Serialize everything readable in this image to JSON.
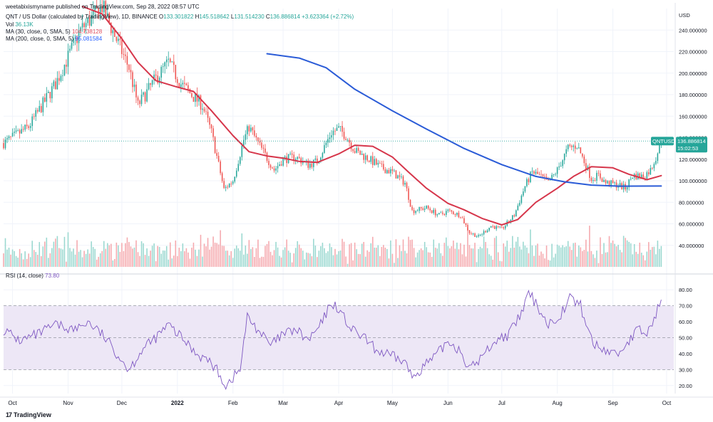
{
  "header": {
    "published_by": "weetabixismyname published on TradingView.com, Sep 28, 2022 08:57 UTC",
    "symbol_line": "QNT / US Dollar (calculated by TradingView), 1D, BINANCE",
    "ohlc": {
      "o_label": "O",
      "o": "133.301822",
      "h_label": "H",
      "h": "145.518642",
      "l_label": "L",
      "l": "131.514230",
      "c_label": "C",
      "c": "136.886814",
      "change": "+3.623364 (+2.72%)"
    },
    "vol_label": "Vol",
    "vol": "36.13K",
    "ma30_label": "MA (30, close, 0, SMA, 5)",
    "ma30": "104.738128",
    "ma200_label": "MA (200, close, 0, SMA, 5)",
    "ma200": "95.081584",
    "rsi_label": "RSI (14, close)",
    "rsi": "73.80"
  },
  "price_badge": {
    "symbol": "QNTUSD",
    "price": "136.886814",
    "countdown": "15:02:53"
  },
  "footer": {
    "logo_text": "TradingView",
    "logo_mark": "17"
  },
  "colors": {
    "up": "#26a69a",
    "down": "#ef5350",
    "up_vol": "#9ad8d0",
    "down_vol": "#f5a9ae",
    "ma30": "#d6364b",
    "ma200": "#2a5bd7",
    "rsi_line": "#7e57c2",
    "rsi_band": "#ede7f6"
  },
  "chart_data": [
    {
      "type": "candlestick",
      "title": "QNT / US Dollar, 1D, BINANCE",
      "ylabel": "USD",
      "ylim": [
        20,
        260
      ],
      "yticks": [
        40,
        60,
        80,
        100,
        120,
        140,
        160,
        180,
        200,
        220,
        240
      ],
      "ytick_labels": [
        "40.000000",
        "60.000000",
        "80.000000",
        "100.000000",
        "120.000000",
        "140.000000",
        "160.000000",
        "180.000000",
        "200.000000",
        "220.000000",
        "240.000000"
      ],
      "x_range": [
        "2021-09-26",
        "2022-10-05"
      ],
      "x_ticks": [
        {
          "date": "2021-10-01",
          "label": "Oct"
        },
        {
          "date": "2021-11-01",
          "label": "Nov"
        },
        {
          "date": "2021-12-01",
          "label": "Dec"
        },
        {
          "date": "2022-01-01",
          "label": "2022"
        },
        {
          "date": "2022-02-01",
          "label": "Feb"
        },
        {
          "date": "2022-03-01",
          "label": "Mar"
        },
        {
          "date": "2022-04-01",
          "label": "Apr"
        },
        {
          "date": "2022-05-01",
          "label": "May"
        },
        {
          "date": "2022-06-01",
          "label": "Jun"
        },
        {
          "date": "2022-07-01",
          "label": "Jul"
        },
        {
          "date": "2022-08-01",
          "label": "Aug"
        },
        {
          "date": "2022-09-01",
          "label": "Sep"
        },
        {
          "date": "2022-10-01",
          "label": "Oct"
        }
      ],
      "close_path": [
        [
          "2021-09-26",
          135
        ],
        [
          "2021-10-10",
          150
        ],
        [
          "2021-10-25",
          190
        ],
        [
          "2021-11-08",
          240
        ],
        [
          "2021-11-20",
          262
        ],
        [
          "2021-11-27",
          235
        ],
        [
          "2021-12-05",
          205
        ],
        [
          "2021-12-10",
          170
        ],
        [
          "2021-12-20",
          195
        ],
        [
          "2021-12-27",
          210
        ],
        [
          "2022-01-03",
          190
        ],
        [
          "2022-01-10",
          178
        ],
        [
          "2022-01-15",
          170
        ],
        [
          "2022-01-20",
          145
        ],
        [
          "2022-01-24",
          115
        ],
        [
          "2022-01-27",
          92
        ],
        [
          "2022-02-01",
          100
        ],
        [
          "2022-02-07",
          138
        ],
        [
          "2022-02-10",
          150
        ],
        [
          "2022-02-15",
          135
        ],
        [
          "2022-02-24",
          110
        ],
        [
          "2022-03-01",
          120
        ],
        [
          "2022-03-08",
          122
        ],
        [
          "2022-03-15",
          115
        ],
        [
          "2022-03-20",
          118
        ],
        [
          "2022-03-28",
          145
        ],
        [
          "2022-04-01",
          148
        ],
        [
          "2022-04-05",
          142
        ],
        [
          "2022-04-10",
          128
        ],
        [
          "2022-04-18",
          120
        ],
        [
          "2022-04-25",
          112
        ],
        [
          "2022-05-01",
          108
        ],
        [
          "2022-05-08",
          98
        ],
        [
          "2022-05-12",
          72
        ],
        [
          "2022-05-20",
          75
        ],
        [
          "2022-05-27",
          68
        ],
        [
          "2022-06-01",
          72
        ],
        [
          "2022-06-08",
          68
        ],
        [
          "2022-06-13",
          52
        ],
        [
          "2022-06-18",
          48
        ],
        [
          "2022-06-25",
          58
        ],
        [
          "2022-07-01",
          55
        ],
        [
          "2022-07-08",
          68
        ],
        [
          "2022-07-14",
          95
        ],
        [
          "2022-07-18",
          108
        ],
        [
          "2022-07-22",
          105
        ],
        [
          "2022-07-27",
          98
        ],
        [
          "2022-08-01",
          110
        ],
        [
          "2022-08-07",
          130
        ],
        [
          "2022-08-12",
          133
        ],
        [
          "2022-08-16",
          118
        ],
        [
          "2022-08-20",
          102
        ],
        [
          "2022-08-24",
          105
        ],
        [
          "2022-08-28",
          98
        ],
        [
          "2022-09-04",
          96
        ],
        [
          "2022-09-08",
          93
        ],
        [
          "2022-09-12",
          105
        ],
        [
          "2022-09-18",
          104
        ],
        [
          "2022-09-22",
          110
        ],
        [
          "2022-09-25",
          122
        ],
        [
          "2022-09-28",
          136.89
        ]
      ],
      "series": [
        {
          "name": "MA (30, close, 0, SMA, 5)",
          "points": [
            [
              "2021-11-09",
              262
            ],
            [
              "2021-11-20",
              255
            ],
            [
              "2021-12-01",
              232
            ],
            [
              "2021-12-10",
              210
            ],
            [
              "2021-12-20",
              193
            ],
            [
              "2022-01-01",
              187
            ],
            [
              "2022-01-10",
              183
            ],
            [
              "2022-01-20",
              165
            ],
            [
              "2022-02-01",
              142
            ],
            [
              "2022-02-10",
              127
            ],
            [
              "2022-02-20",
              123
            ],
            [
              "2022-03-01",
              121
            ],
            [
              "2022-03-10",
              118
            ],
            [
              "2022-03-20",
              117
            ],
            [
              "2022-04-01",
              125
            ],
            [
              "2022-04-10",
              133
            ],
            [
              "2022-04-20",
              132
            ],
            [
              "2022-05-01",
              122
            ],
            [
              "2022-05-10",
              108
            ],
            [
              "2022-05-20",
              93
            ],
            [
              "2022-06-01",
              79
            ],
            [
              "2022-06-10",
              73
            ],
            [
              "2022-06-20",
              65
            ],
            [
              "2022-07-01",
              59
            ],
            [
              "2022-07-10",
              64
            ],
            [
              "2022-07-20",
              80
            ],
            [
              "2022-08-01",
              93
            ],
            [
              "2022-08-10",
              104
            ],
            [
              "2022-08-20",
              113
            ],
            [
              "2022-09-01",
              112
            ],
            [
              "2022-09-10",
              106
            ],
            [
              "2022-09-20",
              101
            ],
            [
              "2022-09-28",
              104.74
            ]
          ]
        },
        {
          "name": "MA (200, close, 0, SMA, 5)",
          "points": [
            [
              "2022-02-20",
              218
            ],
            [
              "2022-03-10",
              214
            ],
            [
              "2022-03-25",
              205
            ],
            [
              "2022-04-10",
              185
            ],
            [
              "2022-05-01",
              165
            ],
            [
              "2022-05-20",
              148
            ],
            [
              "2022-06-10",
              130
            ],
            [
              "2022-07-01",
              115
            ],
            [
              "2022-07-20",
              104
            ],
            [
              "2022-08-05",
              99
            ],
            [
              "2022-08-20",
              96
            ],
            [
              "2022-09-05",
              95
            ],
            [
              "2022-09-28",
              95.08
            ]
          ]
        }
      ]
    },
    {
      "type": "line",
      "title": "RSI (14, close)",
      "ylim": [
        15,
        85
      ],
      "yticks": [
        20,
        30,
        40,
        50,
        60,
        70,
        80
      ],
      "ytick_labels": [
        "20.00",
        "30.00",
        "40.00",
        "50.00",
        "60.00",
        "70.00",
        "80.00"
      ],
      "band": [
        30,
        70
      ],
      "midline": 50,
      "series": [
        {
          "name": "RSI",
          "points": [
            [
              "2021-09-26",
              55
            ],
            [
              "2021-10-05",
              48
            ],
            [
              "2021-10-15",
              52
            ],
            [
              "2021-10-25",
              58
            ],
            [
              "2021-11-05",
              55
            ],
            [
              "2021-11-12",
              60
            ],
            [
              "2021-11-20",
              52
            ],
            [
              "2021-11-27",
              42
            ],
            [
              "2021-12-05",
              30
            ],
            [
              "2021-12-12",
              42
            ],
            [
              "2021-12-20",
              50
            ],
            [
              "2021-12-27",
              58
            ],
            [
              "2022-01-05",
              48
            ],
            [
              "2022-01-12",
              40
            ],
            [
              "2022-01-19",
              35
            ],
            [
              "2022-01-24",
              28
            ],
            [
              "2022-01-28",
              20
            ],
            [
              "2022-02-05",
              30
            ],
            [
              "2022-02-09",
              63
            ],
            [
              "2022-02-15",
              55
            ],
            [
              "2022-02-22",
              45
            ],
            [
              "2022-03-01",
              52
            ],
            [
              "2022-03-08",
              55
            ],
            [
              "2022-03-15",
              48
            ],
            [
              "2022-03-22",
              58
            ],
            [
              "2022-03-28",
              72
            ],
            [
              "2022-04-01",
              68
            ],
            [
              "2022-04-08",
              55
            ],
            [
              "2022-04-15",
              50
            ],
            [
              "2022-04-22",
              42
            ],
            [
              "2022-05-01",
              38
            ],
            [
              "2022-05-08",
              35
            ],
            [
              "2022-05-12",
              25
            ],
            [
              "2022-05-18",
              32
            ],
            [
              "2022-05-25",
              38
            ],
            [
              "2022-06-01",
              48
            ],
            [
              "2022-06-08",
              42
            ],
            [
              "2022-06-13",
              30
            ],
            [
              "2022-06-20",
              38
            ],
            [
              "2022-06-27",
              48
            ],
            [
              "2022-07-05",
              52
            ],
            [
              "2022-07-12",
              65
            ],
            [
              "2022-07-16",
              78
            ],
            [
              "2022-07-22",
              68
            ],
            [
              "2022-07-27",
              58
            ],
            [
              "2022-08-03",
              65
            ],
            [
              "2022-08-08",
              75
            ],
            [
              "2022-08-14",
              70
            ],
            [
              "2022-08-18",
              55
            ],
            [
              "2022-08-22",
              45
            ],
            [
              "2022-08-28",
              42
            ],
            [
              "2022-09-04",
              40
            ],
            [
              "2022-09-10",
              48
            ],
            [
              "2022-09-15",
              55
            ],
            [
              "2022-09-20",
              52
            ],
            [
              "2022-09-24",
              62
            ],
            [
              "2022-09-28",
              73.8
            ]
          ]
        }
      ]
    }
  ]
}
